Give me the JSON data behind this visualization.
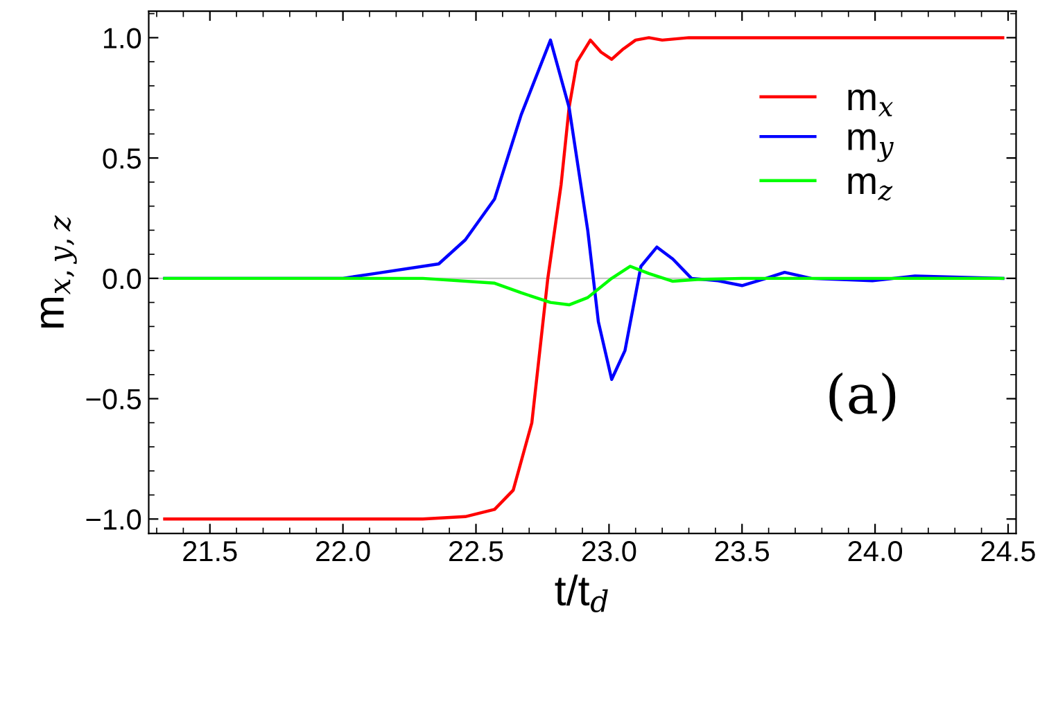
{
  "chart_data": {
    "type": "line",
    "xlabel": "t/t$_{d}$",
    "ylabel": "m$_{x,y,z}$",
    "xlim": [
      21.27,
      24.53
    ],
    "ylim": [
      -1.06,
      1.11
    ],
    "xticks": [
      21.5,
      {
        "value": 22,
        "label": "22.0"
      },
      22.5,
      {
        "value": 23,
        "label": "23.0"
      },
      23.5,
      {
        "value": 24,
        "label": "24.0"
      },
      24.5
    ],
    "yticks": [
      {
        "value": -1,
        "label": "−1.0"
      },
      -0.5,
      {
        "value": 0,
        "label": "0.0"
      },
      0.5,
      {
        "value": 1,
        "label": "1.0"
      }
    ],
    "grid": false,
    "legend": "top right",
    "marker": "none",
    "line_style": "solid",
    "ref_lines": [
      {
        "axis": "y",
        "value": 0,
        "color": "#c8c8c8"
      }
    ],
    "annotations": [
      "(a)"
    ],
    "series": [
      {
        "name": "m$_{x}$",
        "color": "#ff0000",
        "x": [
          21.33,
          22.3,
          22.46,
          22.57,
          22.64,
          22.71,
          22.77,
          22.82,
          22.85,
          22.88,
          22.93,
          22.97,
          23.01,
          23.05,
          23.1,
          23.15,
          23.2,
          23.3,
          24.48
        ],
        "values": [
          -1.0,
          -1.0,
          -0.99,
          -0.96,
          -0.88,
          -0.6,
          0.0,
          0.39,
          0.71,
          0.9,
          0.99,
          0.94,
          0.91,
          0.95,
          0.99,
          1.0,
          0.99,
          1.0,
          1.0
        ]
      },
      {
        "name": "m$_{y}$",
        "color": "#0000ff",
        "x": [
          21.33,
          22.0,
          22.12,
          22.36,
          22.46,
          22.57,
          22.67,
          22.78,
          22.85,
          22.92,
          22.96,
          23.01,
          23.06,
          23.12,
          23.18,
          23.24,
          23.31,
          23.41,
          23.5,
          23.59,
          23.66,
          23.76,
          23.99,
          24.15,
          24.48
        ],
        "values": [
          0.0,
          0.0,
          0.02,
          0.06,
          0.16,
          0.33,
          0.68,
          0.99,
          0.71,
          0.2,
          -0.18,
          -0.42,
          -0.3,
          0.05,
          0.13,
          0.08,
          0.0,
          -0.01,
          -0.03,
          0.0,
          0.025,
          0.0,
          -0.01,
          0.01,
          0.0
        ]
      },
      {
        "name": "m$_{z}$",
        "color": "#00ff00",
        "x": [
          21.33,
          22.3,
          22.57,
          22.67,
          22.78,
          22.85,
          22.92,
          23.01,
          23.08,
          23.15,
          23.24,
          23.33,
          23.5,
          24.48
        ],
        "values": [
          0.0,
          0.0,
          -0.02,
          -0.06,
          -0.1,
          -0.11,
          -0.08,
          0.0,
          0.05,
          0.02,
          -0.012,
          -0.005,
          0.0,
          0.0
        ]
      }
    ]
  }
}
